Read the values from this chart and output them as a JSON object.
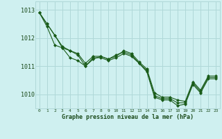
{
  "title": "",
  "xlabel": "Graphe pression niveau de la mer (hPa)",
  "ylabel": "",
  "bg_color": "#cff0f0",
  "grid_color": "#b0d8d8",
  "line_color": "#1a5c1a",
  "marker_color": "#1a5c1a",
  "xlim": [
    -0.5,
    23.5
  ],
  "ylim": [
    1009.5,
    1013.3
  ],
  "yticks": [
    1010,
    1011,
    1012,
    1013
  ],
  "xticks": [
    0,
    1,
    2,
    3,
    4,
    5,
    6,
    7,
    8,
    9,
    10,
    11,
    12,
    13,
    14,
    15,
    16,
    17,
    18,
    19,
    20,
    21,
    22,
    23
  ],
  "series1": [
    1012.9,
    1012.5,
    1012.1,
    1011.65,
    1011.55,
    1011.4,
    1011.0,
    1011.3,
    1011.3,
    1011.2,
    1011.3,
    1011.45,
    1011.35,
    1011.1,
    1010.85,
    1009.95,
    1009.85,
    1009.85,
    1009.7,
    1009.7,
    1010.4,
    1010.1,
    1010.6,
    1010.6
  ],
  "series2": [
    1012.9,
    1012.4,
    1011.75,
    1011.65,
    1011.3,
    1011.2,
    1011.0,
    1011.25,
    1011.35,
    1011.25,
    1011.4,
    1011.5,
    1011.4,
    1011.1,
    1010.8,
    1009.9,
    1009.8,
    1009.8,
    1009.6,
    1009.65,
    1010.35,
    1010.05,
    1010.55,
    1010.55
  ],
  "series3": [
    1012.9,
    1012.5,
    1012.1,
    1011.7,
    1011.55,
    1011.45,
    1011.1,
    1011.35,
    1011.35,
    1011.25,
    1011.35,
    1011.55,
    1011.45,
    1011.15,
    1010.9,
    1010.05,
    1009.9,
    1009.9,
    1009.8,
    1009.75,
    1010.45,
    1010.15,
    1010.65,
    1010.65
  ]
}
